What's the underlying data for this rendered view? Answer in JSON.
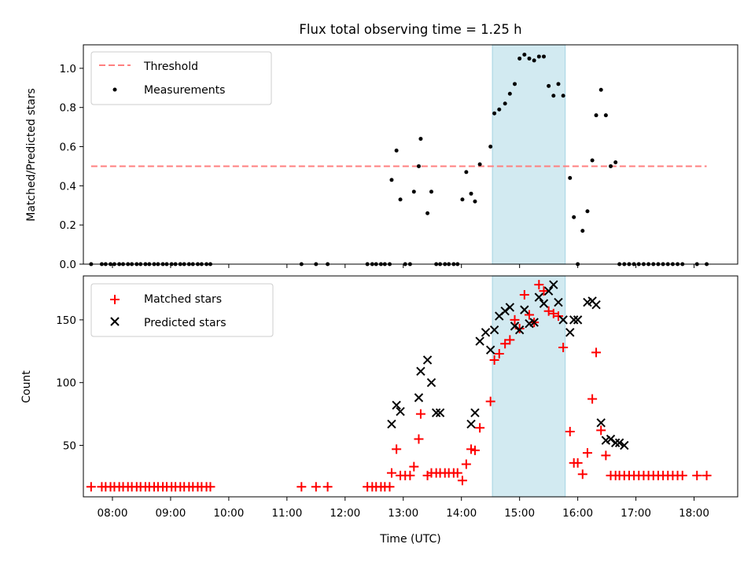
{
  "chart_data": [
    {
      "type": "scatter",
      "title": "Flux total observing time = 1.25 h",
      "xlabel": "",
      "ylabel": "Matched/Predicted stars",
      "xlim": [
        "07:30",
        "18:45"
      ],
      "ylim": [
        0,
        1.12
      ],
      "yticks": [
        "0.0",
        "0.2",
        "0.4",
        "0.6",
        "0.8",
        "1.0"
      ],
      "grid": false,
      "legend_position": "top-left",
      "highlight_span": {
        "start": "14:32",
        "end": "15:47",
        "color": "#add8e6"
      },
      "series": [
        {
          "name": "Threshold",
          "style": "dashed-line",
          "color": "#ff7f7f",
          "x": [
            "07:38",
            "18:13"
          ],
          "y": [
            0.5,
            0.5
          ]
        },
        {
          "name": "Measurements",
          "style": "dot",
          "color": "#000000",
          "x": [
            "07:38",
            "07:49",
            "07:53",
            "07:58",
            "08:02",
            "08:07",
            "08:11",
            "08:16",
            "08:20",
            "08:25",
            "08:29",
            "08:34",
            "08:38",
            "08:43",
            "08:47",
            "08:52",
            "08:56",
            "09:01",
            "09:05",
            "09:10",
            "09:14",
            "09:19",
            "09:23",
            "09:28",
            "09:32",
            "09:37",
            "09:41",
            "11:15",
            "11:30",
            "11:42",
            "12:23",
            "12:28",
            "12:32",
            "12:37",
            "12:41",
            "12:46",
            "12:48",
            "12:53",
            "12:57",
            "13:02",
            "13:07",
            "13:11",
            "13:16",
            "13:18",
            "13:25",
            "13:29",
            "13:34",
            "13:38",
            "13:43",
            "13:47",
            "13:52",
            "13:56",
            "14:01",
            "14:05",
            "14:10",
            "14:14",
            "14:19",
            "14:30",
            "14:34",
            "14:39",
            "14:45",
            "14:50",
            "14:55",
            "15:00",
            "15:05",
            "15:10",
            "15:15",
            "15:20",
            "15:25",
            "15:30",
            "15:35",
            "15:40",
            "15:45",
            "15:52",
            "15:56",
            "16:00",
            "16:05",
            "16:10",
            "16:15",
            "16:19",
            "16:24",
            "16:29",
            "16:34",
            "16:39",
            "16:43",
            "16:48",
            "16:53",
            "16:58",
            "17:03",
            "17:08",
            "17:13",
            "17:18",
            "17:23",
            "17:28",
            "17:33",
            "17:38",
            "17:43",
            "17:48",
            "18:03",
            "18:13"
          ],
          "y": [
            0.0,
            0.0,
            0.0,
            0.0,
            0.0,
            0.0,
            0.0,
            0.0,
            0.0,
            0.0,
            0.0,
            0.0,
            0.0,
            0.0,
            0.0,
            0.0,
            0.0,
            0.0,
            0.0,
            0.0,
            0.0,
            0.0,
            0.0,
            0.0,
            0.0,
            0.0,
            0.0,
            0.0,
            0.0,
            0.0,
            0.0,
            0.0,
            0.0,
            0.0,
            0.0,
            0.0,
            0.43,
            0.58,
            0.33,
            0.0,
            0.0,
            0.37,
            0.5,
            0.64,
            0.26,
            0.37,
            0.0,
            0.0,
            0.0,
            0.0,
            0.0,
            0.0,
            0.33,
            0.47,
            0.36,
            0.32,
            0.51,
            0.6,
            0.77,
            0.79,
            0.82,
            0.87,
            0.92,
            1.05,
            1.07,
            1.05,
            1.04,
            1.06,
            1.06,
            0.91,
            0.86,
            0.92,
            0.86,
            0.44,
            0.24,
            0.0,
            0.17,
            0.27,
            0.53,
            0.76,
            0.89,
            0.76,
            0.5,
            0.52,
            0.0,
            0.0,
            0.0,
            0.0,
            0.0,
            0.0,
            0.0,
            0.0,
            0.0,
            0.0,
            0.0,
            0.0,
            0.0,
            0.0,
            0.0,
            0.0
          ]
        }
      ]
    },
    {
      "type": "scatter",
      "title": "",
      "xlabel": "Time (UTC)",
      "ylabel": "Count",
      "xlim": [
        "07:30",
        "18:45"
      ],
      "ylim": [
        9,
        185
      ],
      "xticks": [
        "08:00",
        "09:00",
        "10:00",
        "11:00",
        "12:00",
        "13:00",
        "14:00",
        "15:00",
        "16:00",
        "17:00",
        "18:00"
      ],
      "yticks": [
        "50",
        "100",
        "150"
      ],
      "grid": false,
      "legend_position": "top-left",
      "highlight_span": {
        "start": "14:32",
        "end": "15:47",
        "color": "#add8e6"
      },
      "series": [
        {
          "name": "Matched stars",
          "style": "plus",
          "color": "#ff0000",
          "x": [
            "07:38",
            "07:49",
            "07:53",
            "07:58",
            "08:02",
            "08:07",
            "08:11",
            "08:16",
            "08:20",
            "08:25",
            "08:29",
            "08:34",
            "08:38",
            "08:43",
            "08:47",
            "08:52",
            "08:56",
            "09:01",
            "09:05",
            "09:10",
            "09:14",
            "09:19",
            "09:23",
            "09:28",
            "09:32",
            "09:37",
            "09:41",
            "11:15",
            "11:30",
            "11:42",
            "12:23",
            "12:28",
            "12:32",
            "12:37",
            "12:41",
            "12:46",
            "12:48",
            "12:53",
            "12:57",
            "13:02",
            "13:07",
            "13:11",
            "13:16",
            "13:18",
            "13:25",
            "13:29",
            "13:34",
            "13:38",
            "13:43",
            "13:47",
            "13:52",
            "13:56",
            "14:01",
            "14:05",
            "14:10",
            "14:14",
            "14:19",
            "14:30",
            "14:34",
            "14:39",
            "14:45",
            "14:50",
            "14:55",
            "15:00",
            "15:05",
            "15:10",
            "15:15",
            "15:20",
            "15:25",
            "15:30",
            "15:35",
            "15:40",
            "15:45",
            "15:52",
            "15:56",
            "16:00",
            "16:05",
            "16:10",
            "16:15",
            "16:19",
            "16:24",
            "16:29",
            "16:34",
            "16:39",
            "16:43",
            "16:48",
            "16:53",
            "16:58",
            "17:03",
            "17:08",
            "17:13",
            "17:18",
            "17:23",
            "17:28",
            "17:33",
            "17:38",
            "17:43",
            "17:48",
            "18:03",
            "18:13"
          ],
          "y": [
            17,
            17,
            17,
            17,
            17,
            17,
            17,
            17,
            17,
            17,
            17,
            17,
            17,
            17,
            17,
            17,
            17,
            17,
            17,
            17,
            17,
            17,
            17,
            17,
            17,
            17,
            17,
            17,
            17,
            17,
            17,
            17,
            17,
            17,
            17,
            17,
            28,
            47,
            26,
            26,
            26,
            33,
            55,
            75,
            26,
            28,
            28,
            28,
            28,
            28,
            28,
            28,
            22,
            35,
            47,
            46,
            64,
            85,
            118,
            123,
            131,
            134,
            150,
            143,
            170,
            154,
            148,
            178,
            173,
            157,
            155,
            153,
            128,
            61,
            36,
            36,
            27,
            44,
            87,
            124,
            62,
            42,
            26,
            26,
            26,
            26,
            26,
            26,
            26,
            26,
            26,
            26,
            26,
            26,
            26,
            26,
            26,
            26,
            26,
            26
          ]
        },
        {
          "name": "Predicted stars",
          "style": "x",
          "color": "#000000",
          "x": [
            "12:48",
            "12:53",
            "12:57",
            "13:16",
            "13:18",
            "13:25",
            "13:29",
            "13:34",
            "13:38",
            "14:10",
            "14:14",
            "14:19",
            "14:25",
            "14:30",
            "14:34",
            "14:39",
            "14:45",
            "14:50",
            "14:55",
            "15:00",
            "15:05",
            "15:10",
            "15:15",
            "15:20",
            "15:25",
            "15:30",
            "15:35",
            "15:40",
            "15:45",
            "15:52",
            "15:56",
            "16:00",
            "16:10",
            "16:15",
            "16:19",
            "16:24",
            "16:29",
            "16:34",
            "16:39",
            "16:43",
            "16:48"
          ],
          "y": [
            67,
            82,
            77,
            88,
            109,
            118,
            100,
            76,
            76,
            67,
            76,
            133,
            140,
            126,
            142,
            153,
            157,
            160,
            145,
            142,
            158,
            147,
            148,
            168,
            163,
            173,
            178,
            164,
            150,
            140,
            150,
            150,
            164,
            165,
            162,
            68,
            54,
            55,
            52,
            52,
            50
          ]
        }
      ]
    }
  ]
}
